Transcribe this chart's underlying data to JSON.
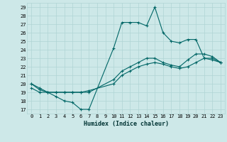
{
  "xlabel": "Humidex (Indice chaleur)",
  "background_color": "#cde8e8",
  "line_color": "#006666",
  "grid_color": "#b0d4d4",
  "xlim": [
    -0.5,
    23.5
  ],
  "ylim": [
    16.5,
    29.5
  ],
  "yticks": [
    17,
    18,
    19,
    20,
    21,
    22,
    23,
    24,
    25,
    26,
    27,
    28,
    29
  ],
  "xticks": [
    0,
    1,
    2,
    3,
    4,
    5,
    6,
    7,
    8,
    9,
    10,
    11,
    12,
    13,
    14,
    15,
    16,
    17,
    18,
    19,
    20,
    21,
    22,
    23
  ],
  "line1_x": [
    0,
    1,
    2,
    3,
    4,
    5,
    6,
    7,
    10,
    11,
    12,
    13,
    14,
    15,
    16,
    17,
    18,
    19,
    20,
    21,
    22,
    23
  ],
  "line1_y": [
    20.0,
    19.3,
    19.0,
    18.5,
    18.0,
    17.8,
    17.0,
    17.0,
    24.2,
    27.2,
    27.2,
    27.2,
    26.8,
    29.0,
    26.0,
    25.0,
    24.8,
    25.2,
    25.2,
    23.0,
    23.0,
    22.5
  ],
  "line2_x": [
    0,
    1,
    2,
    3,
    4,
    5,
    6,
    7,
    10,
    11,
    12,
    13,
    14,
    15,
    16,
    17,
    18,
    19,
    20,
    21,
    22,
    23
  ],
  "line2_y": [
    20.0,
    19.5,
    19.0,
    19.0,
    19.0,
    19.0,
    19.0,
    19.0,
    20.5,
    21.5,
    22.0,
    22.5,
    23.0,
    23.0,
    22.5,
    22.2,
    22.0,
    22.8,
    23.5,
    23.5,
    23.2,
    22.5
  ],
  "line3_x": [
    0,
    1,
    2,
    3,
    4,
    5,
    6,
    7,
    10,
    11,
    12,
    13,
    14,
    15,
    16,
    17,
    18,
    19,
    20,
    21,
    22,
    23
  ],
  "line3_y": [
    19.5,
    19.0,
    19.0,
    19.0,
    19.0,
    19.0,
    19.0,
    19.2,
    20.0,
    21.0,
    21.5,
    22.0,
    22.3,
    22.5,
    22.3,
    22.0,
    21.8,
    22.0,
    22.5,
    23.0,
    22.8,
    22.5
  ]
}
